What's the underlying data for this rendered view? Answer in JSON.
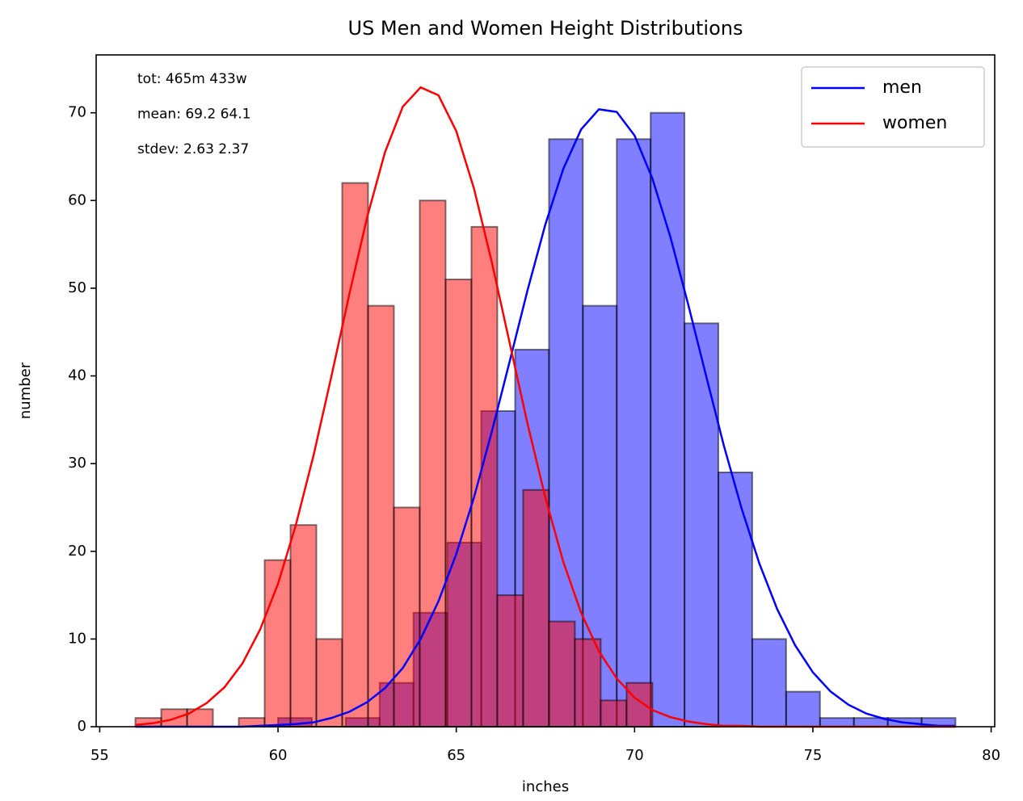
{
  "chart_data": {
    "type": "histogram",
    "title": "US Men and Women Height Distributions",
    "xlabel": "inches",
    "ylabel": "number",
    "annotations": [
      "tot: 465m 433w",
      "mean: 69.2  64.1",
      "stdev: 2.63  2.37"
    ],
    "xlim": [
      54.9,
      80.1
    ],
    "ylim": [
      0,
      76.6
    ],
    "xticks": [
      55,
      60,
      65,
      70,
      75,
      80
    ],
    "yticks": [
      0,
      10,
      20,
      30,
      40,
      50,
      60,
      70
    ],
    "legend": "upper right",
    "histograms": [
      {
        "color": "#0000ff",
        "bins": [
          60,
          60.95,
          61.9,
          62.85,
          63.8,
          64.75,
          65.7,
          66.65,
          67.6,
          68.55,
          69.5,
          70.45,
          71.4,
          72.35,
          73.3,
          74.25,
          75.2,
          76.15,
          77.1,
          78.05,
          79
        ],
        "values": [
          1,
          0,
          1,
          5,
          13,
          21,
          36,
          43,
          67,
          48,
          67,
          70,
          46,
          29,
          10,
          4,
          1,
          1,
          1,
          1
        ]
      },
      {
        "color": "#ff0000",
        "bins": [
          56,
          56.725,
          57.45,
          58.175,
          58.9,
          59.625,
          60.35,
          61.075,
          61.8,
          62.525,
          63.25,
          63.975,
          64.7,
          65.425,
          66.15,
          66.875,
          67.6,
          68.325,
          69.05,
          69.775,
          70.5
        ],
        "values": [
          1,
          2,
          2,
          0,
          1,
          19,
          23,
          10,
          62,
          48,
          25,
          60,
          51,
          57,
          15,
          27,
          12,
          10,
          3,
          5
        ]
      }
    ],
    "x": [
      56,
      56.5,
      57,
      57.5,
      58,
      58.5,
      59,
      59.5,
      60,
      60.5,
      61,
      61.5,
      62,
      62.5,
      63,
      63.5,
      64,
      64.5,
      65,
      65.5,
      66,
      66.5,
      67,
      67.5,
      68,
      68.5,
      69,
      69.5,
      70,
      70.5,
      71,
      71.5,
      72,
      72.5,
      73,
      73.5,
      74,
      74.5,
      75,
      75.5,
      76,
      76.5,
      77,
      77.5,
      78,
      78.5,
      79
    ],
    "series": [
      {
        "name": "men",
        "color": "#0000ff",
        "values": [
          0,
          0,
          0,
          0,
          0,
          0,
          0,
          0.1,
          0.2,
          0.3,
          0.5,
          1,
          1.7,
          2.8,
          4.4,
          6.7,
          10,
          14.3,
          19.7,
          26.2,
          33.7,
          41.7,
          49.8,
          57.3,
          63.6,
          68.1,
          70.4,
          70.1,
          67.4,
          62.5,
          55.9,
          48.2,
          40.1,
          32.1,
          24.9,
          18.6,
          13.4,
          9.3,
          6.2,
          4,
          2.5,
          1.5,
          0.9,
          0.5,
          0.3,
          0.1,
          0.1
        ]
      },
      {
        "name": "women",
        "color": "#ff0000",
        "values": [
          0.2,
          0.4,
          0.8,
          1.5,
          2.7,
          4.5,
          7.2,
          11.1,
          16.3,
          23,
          31,
          40,
          49.3,
          58.1,
          65.5,
          70.7,
          72.9,
          72,
          67.9,
          61.3,
          52.9,
          43.7,
          34.5,
          26.1,
          18.8,
          13,
          8.6,
          5.5,
          3.3,
          1.9,
          1.1,
          0.6,
          0.3,
          0.1,
          0.1,
          0,
          0,
          0,
          0,
          0,
          0,
          0,
          0,
          0,
          0,
          0,
          0
        ]
      }
    ]
  }
}
